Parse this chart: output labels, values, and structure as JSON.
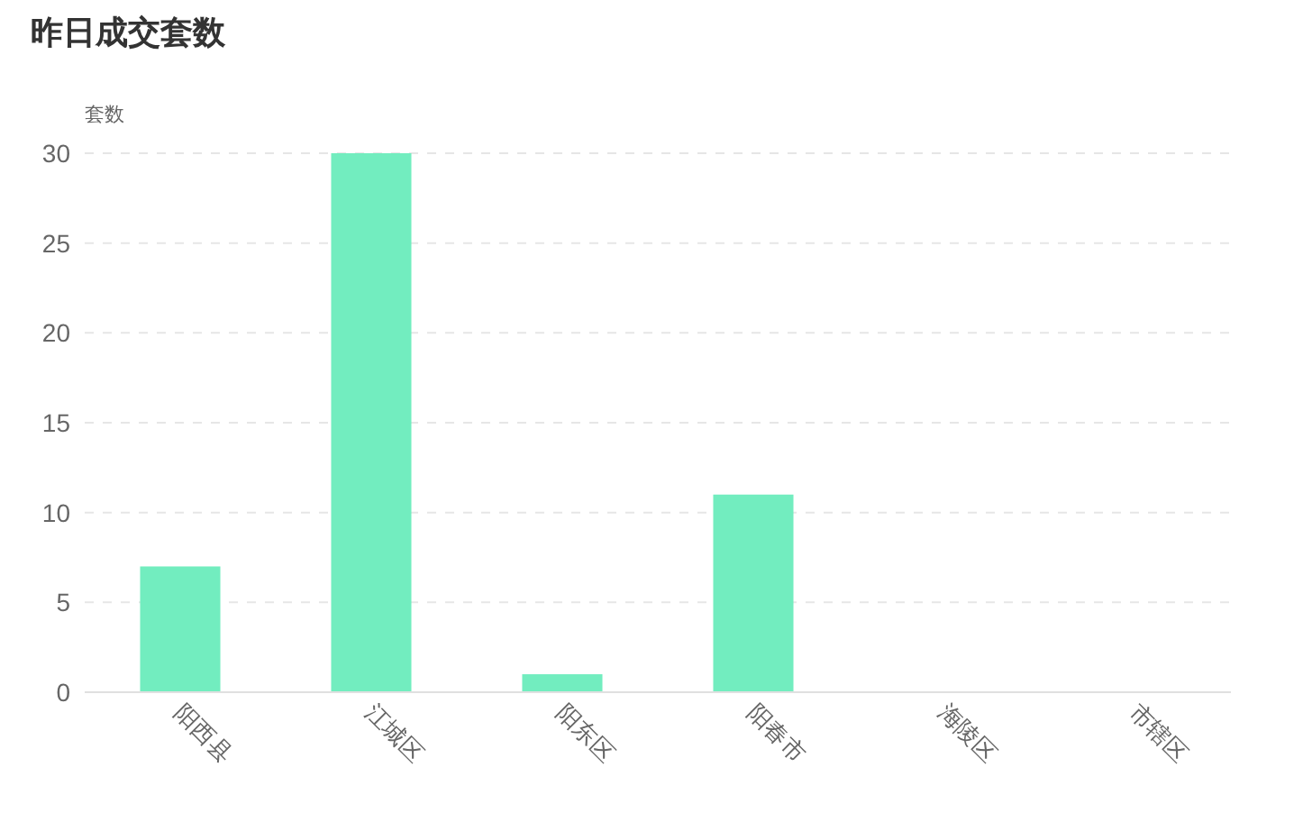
{
  "chart_data": {
    "type": "bar",
    "title": "昨日成交套数",
    "ylabel": "套数",
    "categories": [
      "阳西县",
      "江城区",
      "阳东区",
      "阳春市",
      "海陵区",
      "市辖区"
    ],
    "values": [
      7,
      30,
      1,
      11,
      0,
      0
    ],
    "color": "#72edbf",
    "ylim": [
      0,
      30
    ],
    "yticks": [
      0,
      5,
      10,
      15,
      20,
      25,
      30
    ],
    "grid": "y"
  }
}
